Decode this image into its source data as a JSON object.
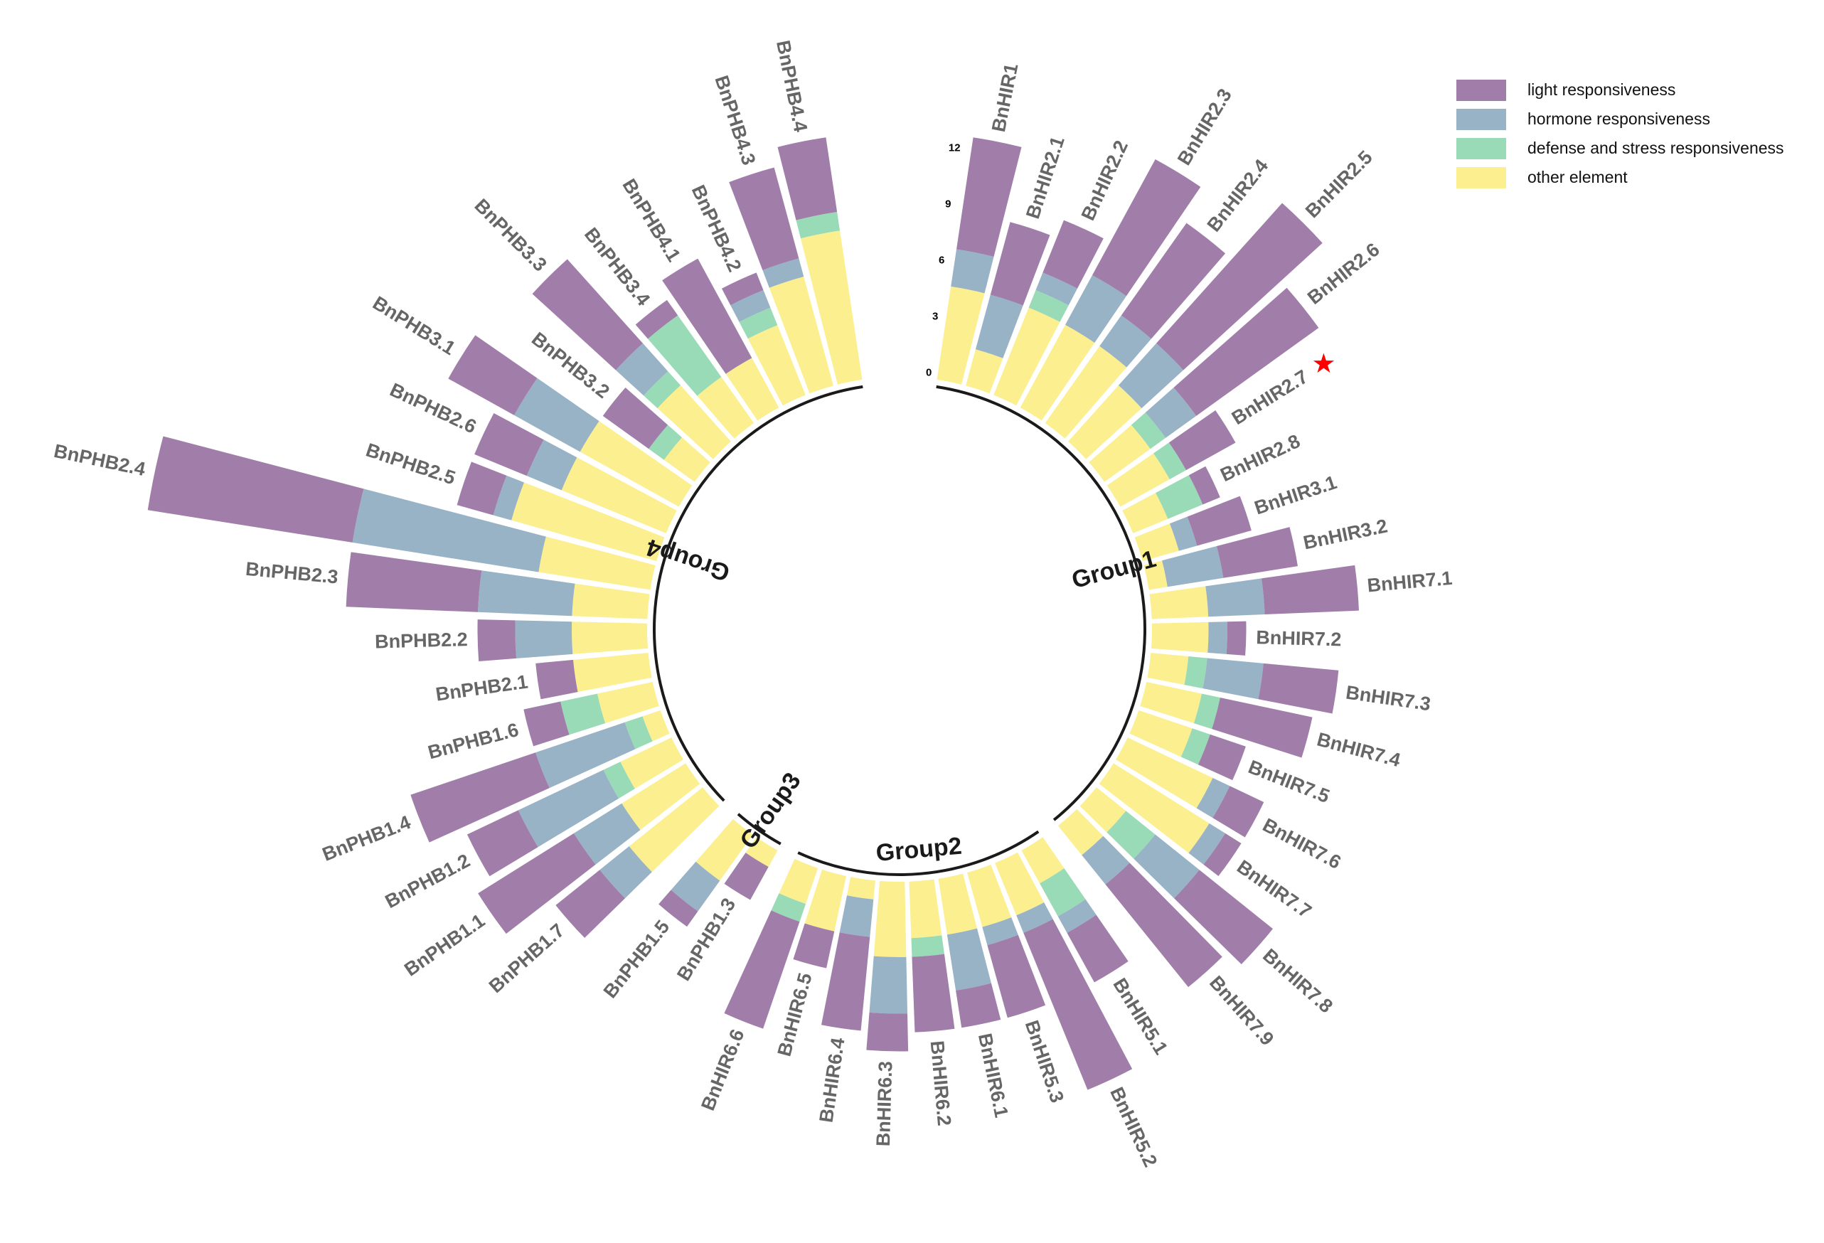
{
  "chart_data": {
    "type": "circular-stacked-bar",
    "title": "",
    "unit_ticks": [
      0,
      3,
      6,
      9,
      12
    ],
    "series": [
      {
        "key": "other",
        "name": "other element",
        "color": "#fbef8f"
      },
      {
        "key": "defense",
        "name": "defense and stress responsiveness",
        "color": "#99dbb7"
      },
      {
        "key": "hormone",
        "name": "hormone responsiveness",
        "color": "#98b2c6"
      },
      {
        "key": "light",
        "name": "light responsiveness",
        "color": "#a07ea9"
      }
    ],
    "legend_order": [
      "light",
      "hormone",
      "defense",
      "other"
    ],
    "highlight": {
      "gene": "BnHIR2.7",
      "symbol": "★",
      "color": "#ff0000"
    },
    "groups": [
      {
        "name": "Group1",
        "genes": [
          {
            "gene": "BnHIR1",
            "other": 5,
            "defense": 0,
            "hormone": 2,
            "light": 6
          },
          {
            "gene": "BnHIR2.1",
            "other": 2,
            "defense": 0,
            "hormone": 3,
            "light": 4
          },
          {
            "gene": "BnHIR2.2",
            "other": 5,
            "defense": 1,
            "hormone": 1,
            "light": 3
          },
          {
            "gene": "BnHIR2.3",
            "other": 5,
            "defense": 0,
            "hormone": 3,
            "light": 7
          },
          {
            "gene": "BnHIR2.4",
            "other": 5,
            "defense": 0,
            "hormone": 2,
            "light": 6
          },
          {
            "gene": "BnHIR2.5",
            "other": 4,
            "defense": 0,
            "hormone": 3,
            "light": 10
          },
          {
            "gene": "BnHIR2.6",
            "other": 3,
            "defense": 1,
            "hormone": 2,
            "light": 8
          },
          {
            "gene": "BnHIR2.7",
            "other": 3,
            "defense": 1,
            "hormone": 0,
            "light": 3
          },
          {
            "gene": "BnHIR2.8",
            "other": 2,
            "defense": 2,
            "hormone": 0,
            "light": 1
          },
          {
            "gene": "BnHIR3.1",
            "other": 2,
            "defense": 0,
            "hormone": 1,
            "light": 3
          },
          {
            "gene": "BnHIR3.2",
            "other": 1,
            "defense": 0,
            "hormone": 3,
            "light": 4
          },
          {
            "gene": "BnHIR7.1",
            "other": 3,
            "defense": 0,
            "hormone": 3,
            "light": 5
          },
          {
            "gene": "BnHIR7.2",
            "other": 3,
            "defense": 0,
            "hormone": 1,
            "light": 1
          },
          {
            "gene": "BnHIR7.3",
            "other": 2,
            "defense": 1,
            "hormone": 3,
            "light": 4
          },
          {
            "gene": "BnHIR7.4",
            "other": 3,
            "defense": 1,
            "hormone": 0,
            "light": 5
          },
          {
            "gene": "BnHIR7.5",
            "other": 3,
            "defense": 1,
            "hormone": 0,
            "light": 2
          },
          {
            "gene": "BnHIR7.6",
            "other": 5,
            "defense": 0,
            "hormone": 1,
            "light": 2
          },
          {
            "gene": "BnHIR7.7",
            "other": 6,
            "defense": 0,
            "hormone": 1,
            "light": 1
          },
          {
            "gene": "BnHIR7.8",
            "other": 2,
            "defense": 2,
            "hormone": 3,
            "light": 5
          },
          {
            "gene": "BnHIR7.9",
            "other": 2,
            "defense": 0,
            "hormone": 2,
            "light": 7
          }
        ]
      },
      {
        "name": "Group2",
        "genes": [
          {
            "gene": "BnHIR5.1",
            "other": 2,
            "defense": 2,
            "hormone": 1,
            "light": 3
          },
          {
            "gene": "BnHIR5.2",
            "other": 3,
            "defense": 0,
            "hormone": 1,
            "light": 9
          },
          {
            "gene": "BnHIR5.3",
            "other": 3,
            "defense": 0,
            "hormone": 1,
            "light": 4
          },
          {
            "gene": "BnHIR6.1",
            "other": 3,
            "defense": 0,
            "hormone": 3,
            "light": 2
          },
          {
            "gene": "BnHIR6.2",
            "other": 3,
            "defense": 1,
            "hormone": 0,
            "light": 4
          },
          {
            "gene": "BnHIR6.3",
            "other": 4,
            "defense": 0,
            "hormone": 3,
            "light": 2
          },
          {
            "gene": "BnHIR6.4",
            "other": 1,
            "defense": 0,
            "hormone": 2,
            "light": 5
          },
          {
            "gene": "BnHIR6.5",
            "other": 3,
            "defense": 0,
            "hormone": 0,
            "light": 2
          },
          {
            "gene": "BnHIR6.6",
            "other": 2,
            "defense": 1,
            "hormone": 0,
            "light": 6
          }
        ]
      },
      {
        "name": "Group3",
        "genes": [
          {
            "gene": "BnPHB1.3",
            "other": 1,
            "defense": 0,
            "hormone": 0,
            "light": 2
          },
          {
            "gene": "BnPHB1.5",
            "other": 3,
            "defense": 0,
            "hormone": 2,
            "light": 1
          }
        ]
      },
      {
        "name": "Group4",
        "genes": [
          {
            "gene": "BnPHB1.7",
            "other": 5,
            "defense": 0,
            "hormone": 2,
            "light": 3
          },
          {
            "gene": "BnPHB1.1",
            "other": 4,
            "defense": 0,
            "hormone": 3,
            "light": 6
          },
          {
            "gene": "BnPHB1.2",
            "other": 3,
            "defense": 1,
            "hormone": 5,
            "light": 3
          },
          {
            "gene": "BnPHB1.4",
            "other": 1,
            "defense": 1,
            "hormone": 5,
            "light": 7
          },
          {
            "gene": "BnPHB1.6",
            "other": 3,
            "defense": 2,
            "hormone": 0,
            "light": 2
          },
          {
            "gene": "BnPHB2.1",
            "other": 4,
            "defense": 0,
            "hormone": 0,
            "light": 2
          },
          {
            "gene": "BnPHB2.2",
            "other": 4,
            "defense": 0,
            "hormone": 3,
            "light": 2
          },
          {
            "gene": "BnPHB2.3",
            "other": 4,
            "defense": 0,
            "hormone": 5,
            "light": 7
          },
          {
            "gene": "BnPHB2.4",
            "other": 6,
            "defense": 0,
            "hormone": 10,
            "light": 11
          },
          {
            "gene": "BnPHB2.5",
            "other": 8,
            "defense": 0,
            "hormone": 1,
            "light": 2
          },
          {
            "gene": "BnPHB2.6",
            "other": 6,
            "defense": 0,
            "hormone": 2,
            "light": 3
          },
          {
            "gene": "BnPHB3.1",
            "other": 6,
            "defense": 0,
            "hormone": 4,
            "light": 4
          },
          {
            "gene": "BnPHB3.2",
            "other": 2,
            "defense": 1,
            "hormone": 0,
            "light": 3
          },
          {
            "gene": "BnPHB3.3",
            "other": 4,
            "defense": 1,
            "hormone": 2,
            "light": 6
          },
          {
            "gene": "BnPHB3.4",
            "other": 3,
            "defense": 4,
            "hormone": 0,
            "light": 1
          },
          {
            "gene": "BnPHB4.1",
            "other": 3,
            "defense": 0,
            "hormone": 0,
            "light": 6
          },
          {
            "gene": "BnPHB4.2",
            "other": 4,
            "defense": 1,
            "hormone": 1,
            "light": 1
          },
          {
            "gene": "BnPHB4.3",
            "other": 6,
            "defense": 0,
            "hormone": 1,
            "light": 5
          },
          {
            "gene": "BnPHB4.4",
            "other": 8,
            "defense": 1,
            "hormone": 0,
            "light": 4
          }
        ]
      }
    ]
  }
}
